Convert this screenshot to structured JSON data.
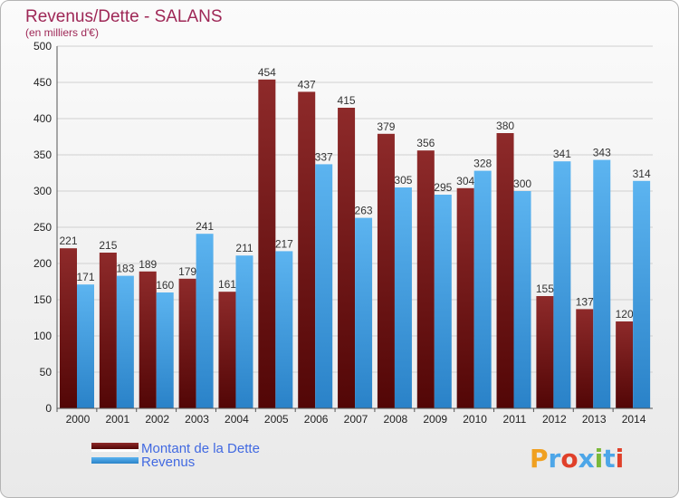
{
  "chart_data": {
    "type": "bar",
    "title": "Revenus/Dette - SALANS",
    "subtitle": "(en milliers d'€)",
    "categories": [
      "2000",
      "2001",
      "2002",
      "2003",
      "2004",
      "2005",
      "2006",
      "2007",
      "2008",
      "2009",
      "2010",
      "2011",
      "2012",
      "2013",
      "2014"
    ],
    "series": [
      {
        "name": "Montant de la Dette",
        "color": "#7a1a1a",
        "values": [
          221,
          215,
          189,
          179,
          161,
          454,
          437,
          415,
          379,
          356,
          304,
          380,
          155,
          137,
          120
        ]
      },
      {
        "name": "Revenus",
        "color": "#4da6e8",
        "values": [
          171,
          183,
          160,
          241,
          211,
          217,
          337,
          263,
          305,
          295,
          328,
          300,
          341,
          343,
          314
        ]
      }
    ],
    "ylim": [
      0,
      500
    ],
    "yticks": [
      0,
      50,
      100,
      150,
      200,
      250,
      300,
      350,
      400,
      450,
      500
    ],
    "grid": true,
    "legend_position": "bottom-left"
  },
  "logo": {
    "text": "Proxiti",
    "colors": [
      "#f0a020",
      "#4da6e8",
      "#e0402a",
      "#4da6e8",
      "#7ab83a",
      "#4da6e8",
      "#e0402a"
    ]
  }
}
